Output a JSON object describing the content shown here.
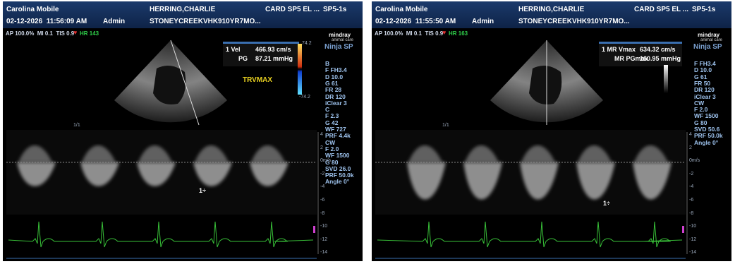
{
  "panels": [
    {
      "header": {
        "clinic": "Carolina Mobile",
        "patient": "HERRING,CHARLIE",
        "exam": "CARD SP5 EL ...",
        "probe": "SP5-1s",
        "datetime": "02-12-2026  11:56:09 AM",
        "user": "Admin",
        "patient_id": "STONEYCREEKVHK910YR7MO..."
      },
      "status": {
        "acoustic": "AP 100.0%  MI 0.1  TIS 0.9",
        "hr": "HR 143"
      },
      "measurements": [
        {
          "label": "1 Vel",
          "value": "466.93 cm/s"
        },
        {
          "label": "PG",
          "value": "87.21 mmHg"
        }
      ],
      "annotation": "TRVMAX",
      "color_scale": [
        "74.2",
        "-74.2"
      ],
      "logo": {
        "brand": "mindray",
        "sub": "animal care",
        "model": "Ninja SP"
      },
      "parameters": [
        "B",
        "F FH3.4",
        "D 10.0",
        "G 61",
        "FR 28",
        "DR 120",
        "iClear 3",
        "C",
        "F 2.3",
        "G 42",
        "WF 727",
        "PRF 4.4k",
        "CW",
        "F 2.0",
        "WF 1500",
        "G 80",
        "SVD 26.0",
        "PRF 50.0k",
        "Angle 0°"
      ],
      "doppler_scale": [
        "4",
        "2",
        "0m/s",
        "-2",
        "-4",
        "-6",
        "-8",
        "-10",
        "-12",
        "-14"
      ],
      "cursor": "1÷",
      "page": "1/1"
    },
    {
      "header": {
        "clinic": "Carolina Mobile",
        "patient": "HERRING,CHARLIE",
        "exam": "CARD SP5 EL ...",
        "probe": "SP5-1s",
        "datetime": "02-12-2026  11:55:50 AM",
        "user": "Admin",
        "patient_id": "STONEYCREEKVHK910YR7MO..."
      },
      "status": {
        "acoustic": "AP 100.0%  MI 0.1  TIS 0.9",
        "hr": "HR 163"
      },
      "measurements": [
        {
          "label": "1 MR Vmax",
          "value": "634.32 cm/s"
        },
        {
          "label": "MR PGmax",
          "value": "160.95 mmHg"
        }
      ],
      "logo": {
        "brand": "mindray",
        "sub": "animal care",
        "model": "Ninja SP"
      },
      "parameters": [
        "F FH3.4",
        "D 10.0",
        "G 61",
        "FR 50",
        "DR 120",
        "iClear 3",
        "CW",
        "F 2.0",
        "WF 1500",
        "G 80",
        "SVD 50.6",
        "PRF 50.0k",
        "Angle 0°"
      ],
      "doppler_scale": [
        "4",
        "2",
        "0m/s",
        "-2",
        "-4",
        "-6",
        "-8",
        "-10",
        "-12",
        "-14"
      ],
      "cursor": "1÷",
      "page": "1/1"
    }
  ]
}
